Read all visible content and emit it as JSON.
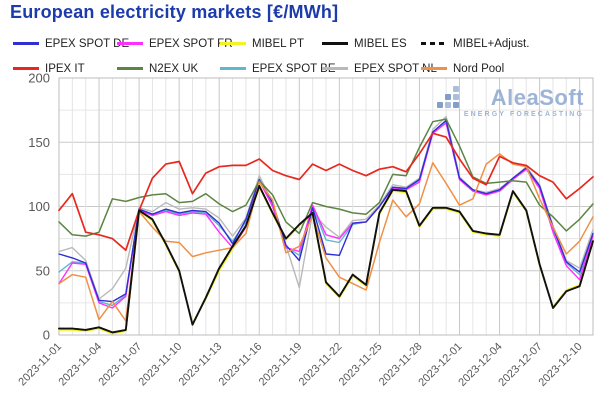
{
  "title": "European electricity markets [€/MWh]",
  "logo": {
    "name": "AleaSoft",
    "tagline": "ENERGY FORECASTING",
    "color": "#8ea8cf"
  },
  "axes": {
    "y_tick_labels": [
      "0",
      "50",
      "100",
      "150",
      "200"
    ],
    "x_label_color": "#595959"
  },
  "legend_order": [
    "EPEX SPOT DE",
    "EPEX SPOT FR",
    "MIBEL PT",
    "MIBEL ES",
    "MIBEL+Adjust.",
    "IPEX IT",
    "N2EX UK",
    "EPEX SPOT BE",
    "EPEX SPOT NL",
    "Nord Pool"
  ],
  "chart_data": {
    "type": "line",
    "title": "European electricity markets [€/MWh]",
    "xlabel": "",
    "ylabel": "",
    "ylim": [
      0,
      200
    ],
    "yticks": [
      0,
      50,
      100,
      150,
      200
    ],
    "y_minor_step": 25,
    "grid": true,
    "legend_position": "top",
    "x_tick_step": 3,
    "x": [
      "2023-11-01",
      "2023-11-02",
      "2023-11-03",
      "2023-11-04",
      "2023-11-05",
      "2023-11-06",
      "2023-11-07",
      "2023-11-08",
      "2023-11-09",
      "2023-11-10",
      "2023-11-11",
      "2023-11-12",
      "2023-11-13",
      "2023-11-14",
      "2023-11-15",
      "2023-11-16",
      "2023-11-17",
      "2023-11-18",
      "2023-11-19",
      "2023-11-20",
      "2023-11-21",
      "2023-11-22",
      "2023-11-23",
      "2023-11-24",
      "2023-11-25",
      "2023-11-26",
      "2023-11-27",
      "2023-11-28",
      "2023-11-29",
      "2023-11-30",
      "2023-12-01",
      "2023-12-02",
      "2023-12-03",
      "2023-12-04",
      "2023-12-05",
      "2023-12-06",
      "2023-12-07",
      "2023-12-08",
      "2023-12-09",
      "2023-12-10",
      "2023-12-11"
    ],
    "series": [
      {
        "name": "MIBEL PT",
        "color": "#f3f324",
        "width": 1.6,
        "dash": null,
        "values": [
          4,
          4,
          3,
          5,
          1,
          3,
          96,
          89,
          70,
          49,
          9,
          28,
          50,
          67,
          84,
          115,
          94,
          74,
          85,
          94,
          40,
          29,
          46,
          38,
          94,
          112,
          111,
          84,
          98,
          98,
          95,
          80,
          78,
          77,
          111,
          96,
          54,
          22,
          35,
          39,
          74
        ]
      },
      {
        "name": "EPEX SPOT NL",
        "color": "#b9b9b9",
        "width": 1.4,
        "dash": null,
        "values": [
          65,
          68,
          58,
          28,
          36,
          52,
          99,
          96,
          103,
          98,
          99,
          98,
          91,
          77,
          91,
          124,
          103,
          70,
          37,
          95,
          84,
          76,
          89,
          90,
          101,
          117,
          115,
          122,
          160,
          170,
          123,
          113,
          111,
          114,
          122,
          131,
          117,
          85,
          58,
          52,
          82
        ]
      },
      {
        "name": "EPEX SPOT BE",
        "color": "#5fb7cf",
        "width": 1.4,
        "dash": null,
        "values": [
          49,
          57,
          56,
          26,
          23,
          31,
          98,
          94,
          97,
          94,
          96,
          95,
          85,
          73,
          88,
          121,
          101,
          69,
          62,
          100,
          74,
          72,
          86,
          88,
          100,
          115,
          114,
          120,
          158,
          166,
          121,
          112,
          110,
          112,
          121,
          129,
          115,
          82,
          56,
          47,
          78
        ]
      },
      {
        "name": "EPEX SPOT FR",
        "color": "#ff2fff",
        "width": 1.4,
        "dash": null,
        "values": [
          40,
          56,
          55,
          25,
          21,
          30,
          97,
          93,
          96,
          93,
          95,
          94,
          80,
          68,
          84,
          120,
          100,
          68,
          65,
          101,
          78,
          75,
          87,
          88,
          100,
          114,
          113,
          119,
          157,
          165,
          121,
          112,
          109,
          112,
          121,
          129,
          114,
          80,
          54,
          43,
          77
        ]
      },
      {
        "name": "EPEX SPOT DE",
        "color": "#2f2fd3",
        "width": 1.4,
        "dash": null,
        "values": [
          63,
          60,
          56,
          27,
          26,
          32,
          98,
          94,
          98,
          95,
          97,
          96,
          87,
          71,
          90,
          121,
          103,
          70,
          58,
          99,
          63,
          62,
          87,
          88,
          100,
          115,
          114,
          121,
          158,
          167,
          122,
          113,
          110,
          113,
          122,
          130,
          116,
          84,
          57,
          49,
          79
        ]
      },
      {
        "name": "N2EX UK",
        "color": "#5c8544",
        "width": 1.5,
        "dash": null,
        "values": [
          88,
          78,
          77,
          80,
          106,
          104,
          107,
          109,
          110,
          103,
          104,
          110,
          102,
          96,
          101,
          120,
          109,
          88,
          79,
          103,
          100,
          98,
          95,
          94,
          103,
          125,
          124,
          146,
          166,
          168,
          147,
          123,
          118,
          119,
          120,
          119,
          101,
          92,
          81,
          90,
          102
        ]
      },
      {
        "name": "Nord Pool",
        "color": "#ef9045",
        "width": 1.5,
        "dash": null,
        "values": [
          40,
          47,
          45,
          12,
          26,
          11,
          96,
          84,
          73,
          72,
          61,
          64,
          66,
          68,
          79,
          119,
          105,
          64,
          69,
          93,
          60,
          45,
          40,
          35,
          72,
          105,
          92,
          102,
          134,
          118,
          101,
          106,
          133,
          141,
          133,
          131,
          106,
          84,
          63,
          73,
          92
        ]
      },
      {
        "name": "IPEX IT",
        "color": "#e8281e",
        "width": 1.7,
        "dash": null,
        "values": [
          97,
          110,
          80,
          78,
          75,
          66,
          97,
          122,
          133,
          135,
          110,
          126,
          131,
          132,
          132,
          137,
          128,
          124,
          121,
          133,
          128,
          133,
          128,
          124,
          129,
          131,
          127,
          141,
          157,
          154,
          137,
          122,
          117,
          139,
          134,
          132,
          124,
          119,
          106,
          114,
          123
        ]
      },
      {
        "name": "MIBEL ES",
        "color": "#111111",
        "width": 1.9,
        "dash": null,
        "values": [
          5,
          5,
          4,
          6,
          2,
          4,
          97,
          90,
          71,
          50,
          8,
          29,
          52,
          69,
          85,
          116,
          95,
          75,
          86,
          95,
          41,
          30,
          47,
          39,
          95,
          113,
          112,
          85,
          99,
          99,
          96,
          81,
          79,
          78,
          112,
          97,
          55,
          21,
          34,
          38,
          73
        ]
      },
      {
        "name": "MIBEL+Adjust.",
        "color": "#111111",
        "width": 1.5,
        "dash": "5 4",
        "values": [
          5,
          5,
          4,
          6,
          2,
          4,
          97,
          90,
          71,
          50,
          8,
          29,
          52,
          69,
          85,
          116,
          95,
          75,
          86,
          95,
          41,
          30,
          47,
          39,
          95,
          113,
          112,
          85,
          99,
          99,
          96,
          81,
          79,
          78,
          112,
          97,
          55,
          21,
          34,
          38,
          73
        ]
      }
    ]
  }
}
